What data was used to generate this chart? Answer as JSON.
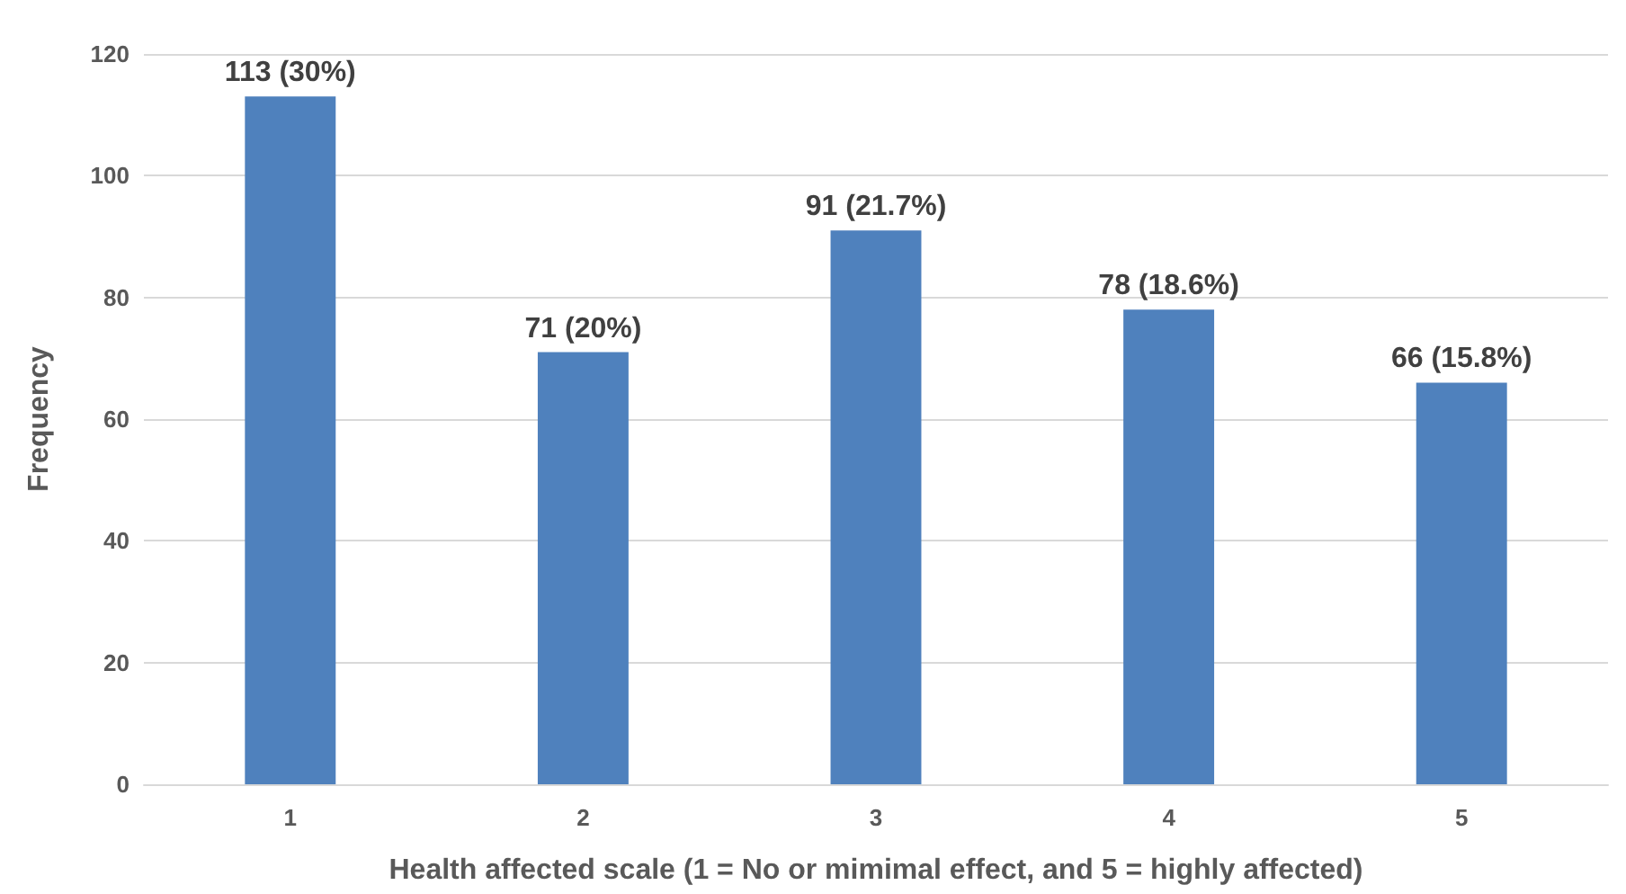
{
  "chart_data": {
    "type": "bar",
    "xlabel": "Health affected scale (1 = No or mimimal effect, and 5 = highly affected)",
    "ylabel": "Frequency",
    "categories": [
      "1",
      "2",
      "3",
      "4",
      "5"
    ],
    "values": [
      113,
      71,
      91,
      78,
      66
    ],
    "value_labels": [
      "113 (30%)",
      "71 (20%)",
      "91 (21.7%)",
      "78 (18.6%)",
      "66 (15.8%)"
    ],
    "color": "#4f81bd",
    "ylim": [
      0,
      120
    ],
    "yticks": [
      0,
      20,
      40,
      60,
      80,
      100,
      120
    ],
    "grid": "y"
  }
}
